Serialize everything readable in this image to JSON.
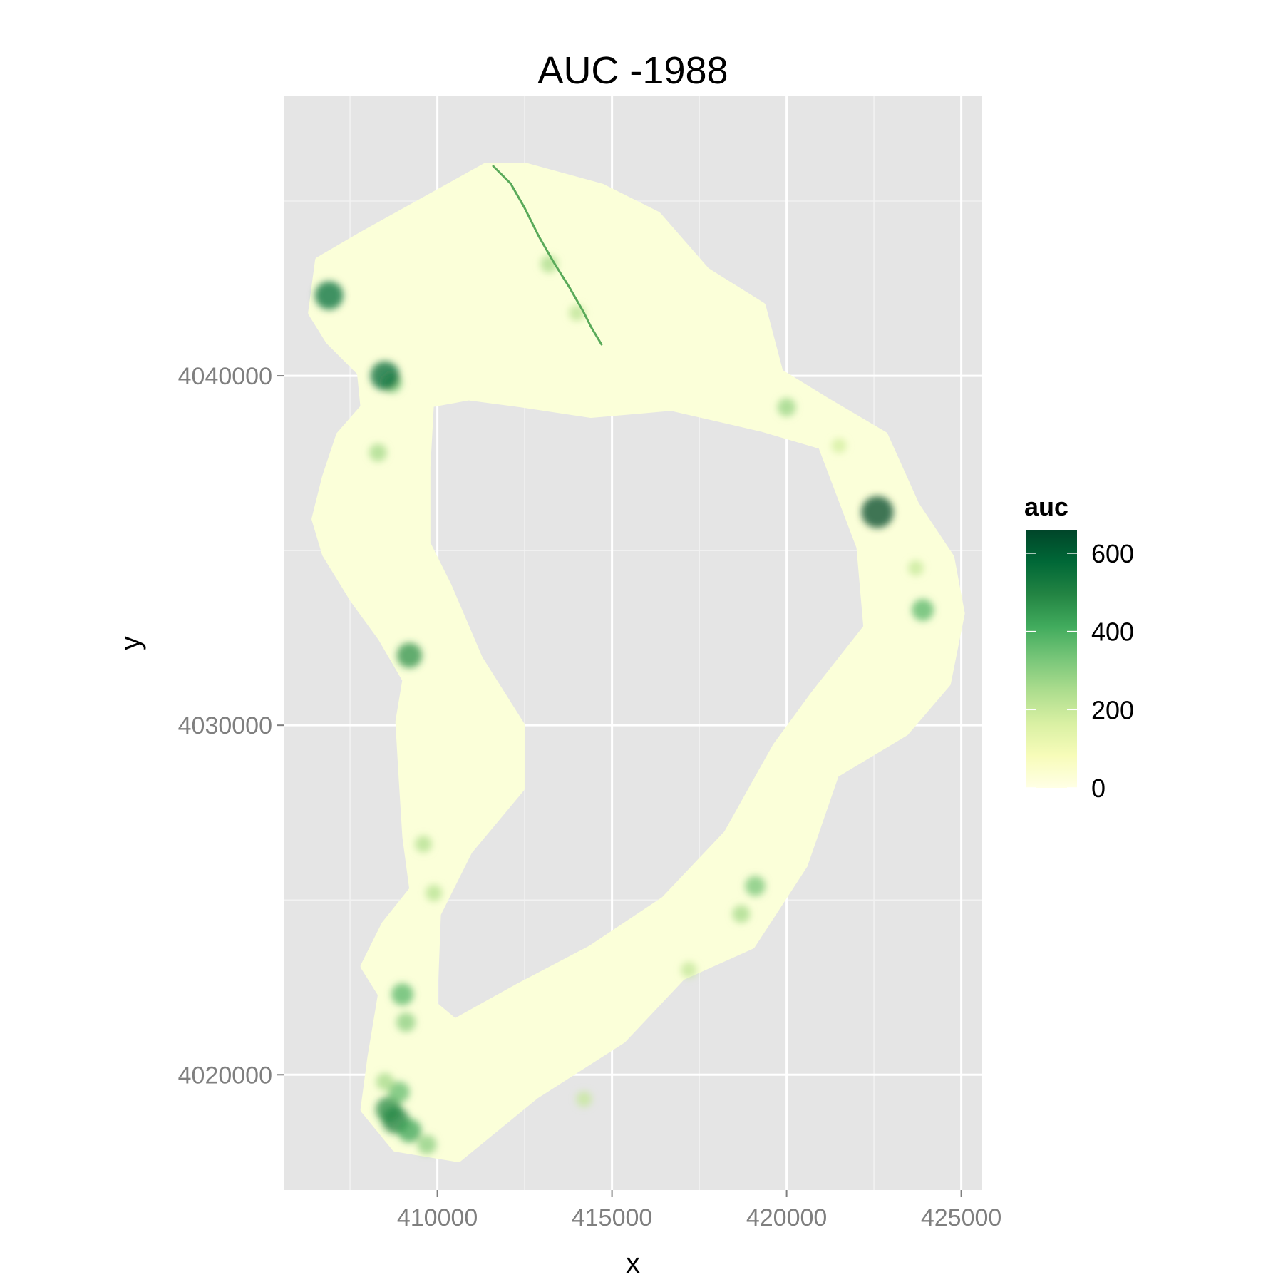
{
  "chart_data": {
    "type": "heatmap",
    "title": "AUC -1988",
    "xlabel": "x",
    "ylabel": "y",
    "xlim": [
      405600,
      425600
    ],
    "ylim": [
      4016700,
      4048000
    ],
    "x_ticks": [
      410000,
      415000,
      420000,
      425000
    ],
    "y_ticks": [
      4020000,
      4030000,
      4040000
    ],
    "x_tick_labels": [
      "410000",
      "415000",
      "420000",
      "425000"
    ],
    "y_tick_labels": [
      "4020000",
      "4030000",
      "4040000"
    ],
    "grid": true,
    "panel_background": "#E5E5E5",
    "legend": {
      "title": "auc",
      "placement": "right",
      "range": [
        0,
        660
      ],
      "breaks": [
        0,
        200,
        400,
        600
      ],
      "break_labels": [
        "0",
        "200",
        "400",
        "600"
      ],
      "colors": [
        "#FFFFE5",
        "#F7FCB9",
        "#D9F0A3",
        "#ADDD8E",
        "#78C679",
        "#41AB5D",
        "#238443",
        "#006837",
        "#004529"
      ]
    },
    "region_outer": [
      [
        411400,
        4046000
      ],
      [
        412500,
        4046000
      ],
      [
        414700,
        4045400
      ],
      [
        416300,
        4044600
      ],
      [
        417700,
        4043000
      ],
      [
        419300,
        4042000
      ],
      [
        419800,
        4040100
      ],
      [
        421100,
        4039300
      ],
      [
        422800,
        4038300
      ],
      [
        423700,
        4036300
      ],
      [
        424700,
        4034800
      ],
      [
        425000,
        4033200
      ],
      [
        424600,
        4031200
      ],
      [
        423400,
        4029800
      ],
      [
        421400,
        4028600
      ],
      [
        420500,
        4026000
      ],
      [
        419000,
        4023700
      ],
      [
        417000,
        4022800
      ],
      [
        415300,
        4021000
      ],
      [
        412800,
        4019400
      ],
      [
        410600,
        4017600
      ],
      [
        408800,
        4017900
      ],
      [
        407900,
        4019000
      ],
      [
        408100,
        4020500
      ],
      [
        408400,
        4022300
      ],
      [
        407900,
        4023100
      ],
      [
        408500,
        4024300
      ],
      [
        409300,
        4025300
      ],
      [
        409100,
        4026800
      ],
      [
        409000,
        4028400
      ],
      [
        408900,
        4030100
      ],
      [
        409100,
        4031300
      ],
      [
        408400,
        4032500
      ],
      [
        407600,
        4033600
      ],
      [
        406800,
        4034900
      ],
      [
        406500,
        4035900
      ],
      [
        406800,
        4037100
      ],
      [
        407200,
        4038300
      ],
      [
        407900,
        4039100
      ],
      [
        407800,
        4040100
      ],
      [
        406900,
        4041000
      ],
      [
        406400,
        4041800
      ],
      [
        406600,
        4043300
      ],
      [
        407800,
        4044000
      ]
    ],
    "region_hole": [
      [
        409800,
        4039200
      ],
      [
        410900,
        4039400
      ],
      [
        412400,
        4039200
      ],
      [
        414400,
        4038900
      ],
      [
        416700,
        4039100
      ],
      [
        419300,
        4038500
      ],
      [
        421000,
        4038000
      ],
      [
        422100,
        4035100
      ],
      [
        422300,
        4032800
      ],
      [
        420800,
        4030900
      ],
      [
        419700,
        4029400
      ],
      [
        418300,
        4026900
      ],
      [
        416500,
        4025000
      ],
      [
        414400,
        4023600
      ],
      [
        412300,
        4022500
      ],
      [
        410500,
        4021500
      ],
      [
        409900,
        4022000
      ],
      [
        410000,
        4024600
      ],
      [
        410900,
        4026400
      ],
      [
        412400,
        4028200
      ],
      [
        412400,
        4030000
      ],
      [
        411200,
        4031900
      ],
      [
        410300,
        4034000
      ],
      [
        409700,
        4035200
      ],
      [
        409700,
        4037400
      ]
    ],
    "ridge_line": [
      [
        411600,
        4046000
      ],
      [
        412100,
        4045500
      ],
      [
        412500,
        4044800
      ],
      [
        412900,
        4044000
      ],
      [
        413300,
        4043300
      ],
      [
        413800,
        4042500
      ],
      [
        414200,
        4041800
      ],
      [
        414400,
        4041400
      ],
      [
        414700,
        4040900
      ]
    ],
    "hotspots": [
      {
        "x": 408800,
        "y": 4018700,
        "auc": 520
      },
      {
        "x": 408600,
        "y": 4019000,
        "auc": 480
      },
      {
        "x": 409200,
        "y": 4018400,
        "auc": 430
      },
      {
        "x": 408900,
        "y": 4019500,
        "auc": 360
      },
      {
        "x": 409700,
        "y": 4018000,
        "auc": 300
      },
      {
        "x": 408500,
        "y": 4019800,
        "auc": 260
      },
      {
        "x": 409000,
        "y": 4022300,
        "auc": 380
      },
      {
        "x": 409100,
        "y": 4021500,
        "auc": 300
      },
      {
        "x": 409600,
        "y": 4026600,
        "auc": 240
      },
      {
        "x": 409900,
        "y": 4025200,
        "auc": 230
      },
      {
        "x": 409200,
        "y": 4032000,
        "auc": 470
      },
      {
        "x": 408700,
        "y": 4039800,
        "auc": 330
      },
      {
        "x": 408300,
        "y": 4037800,
        "auc": 260
      },
      {
        "x": 406900,
        "y": 4042300,
        "auc": 560
      },
      {
        "x": 408500,
        "y": 4040000,
        "auc": 580
      },
      {
        "x": 413200,
        "y": 4043200,
        "auc": 250
      },
      {
        "x": 414000,
        "y": 4041800,
        "auc": 220
      },
      {
        "x": 423900,
        "y": 4033300,
        "auc": 380
      },
      {
        "x": 423700,
        "y": 4034500,
        "auc": 200
      },
      {
        "x": 419100,
        "y": 4025400,
        "auc": 330
      },
      {
        "x": 418700,
        "y": 4024600,
        "auc": 260
      },
      {
        "x": 417200,
        "y": 4023000,
        "auc": 210
      },
      {
        "x": 414200,
        "y": 4019300,
        "auc": 200
      },
      {
        "x": 420000,
        "y": 4039100,
        "auc": 280
      },
      {
        "x": 422600,
        "y": 4036100,
        "auc": 660
      },
      {
        "x": 421500,
        "y": 4038000,
        "auc": 180
      }
    ]
  }
}
